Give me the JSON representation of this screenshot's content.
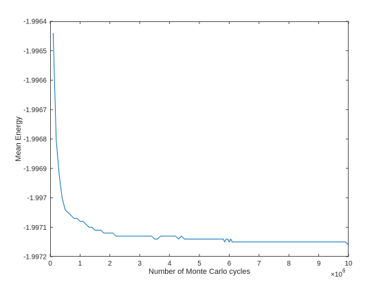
{
  "chart_data": {
    "type": "line",
    "title": "",
    "xlabel": "Number of Monte Carlo cycles",
    "ylabel": "Mean Energy",
    "x_multiplier": "×10",
    "x_exponent": "6",
    "xlim": [
      0,
      10
    ],
    "ylim": [
      -1.9972,
      -1.9964
    ],
    "xticks": [
      0,
      1,
      2,
      3,
      4,
      5,
      6,
      7,
      8,
      9,
      10
    ],
    "xtick_labels": [
      "0",
      "1",
      "2",
      "3",
      "4",
      "5",
      "6",
      "7",
      "8",
      "9",
      "10"
    ],
    "yticks": [
      -1.9964,
      -1.9965,
      -1.9966,
      -1.9967,
      -1.9968,
      -1.9969,
      -1.997,
      -1.9971,
      -1.9972
    ],
    "ytick_labels": [
      "-1.9964",
      "-1.9965",
      "-1.9966",
      "-1.9967",
      "-1.9968",
      "-1.9969",
      "-1.997",
      "-1.9971",
      "-1.9972"
    ],
    "grid": false,
    "line_color": "#0072BD",
    "series": [
      {
        "name": "Mean Energy",
        "x": [
          0.1,
          0.2,
          0.3,
          0.4,
          0.5,
          0.6,
          0.7,
          0.8,
          0.9,
          1.0,
          1.1,
          1.2,
          1.3,
          1.4,
          1.5,
          1.6,
          1.7,
          1.8,
          1.9,
          2.0,
          2.1,
          2.2,
          2.5,
          3.0,
          3.4,
          3.5,
          3.6,
          3.7,
          4.0,
          4.2,
          4.3,
          4.4,
          4.5,
          4.8,
          5.0,
          5.5,
          5.8,
          5.85,
          5.9,
          5.95,
          6.0,
          6.05,
          6.1,
          6.2,
          7.0,
          8.0,
          9.0,
          9.5,
          9.9,
          10.0
        ],
        "values": [
          -1.99644,
          -1.9968,
          -1.99692,
          -1.997,
          -1.99704,
          -1.99705,
          -1.99706,
          -1.99707,
          -1.99707,
          -1.99708,
          -1.99708,
          -1.99709,
          -1.9971,
          -1.9971,
          -1.99711,
          -1.99711,
          -1.99711,
          -1.99712,
          -1.99712,
          -1.99712,
          -1.99712,
          -1.99713,
          -1.99713,
          -1.99713,
          -1.99713,
          -1.99714,
          -1.99714,
          -1.99713,
          -1.99713,
          -1.99713,
          -1.99714,
          -1.99713,
          -1.99714,
          -1.99714,
          -1.99714,
          -1.99714,
          -1.99714,
          -1.99715,
          -1.99714,
          -1.99714,
          -1.99715,
          -1.99714,
          -1.99715,
          -1.99715,
          -1.99715,
          -1.99715,
          -1.99715,
          -1.99715,
          -1.99715,
          -1.99716
        ]
      }
    ]
  }
}
